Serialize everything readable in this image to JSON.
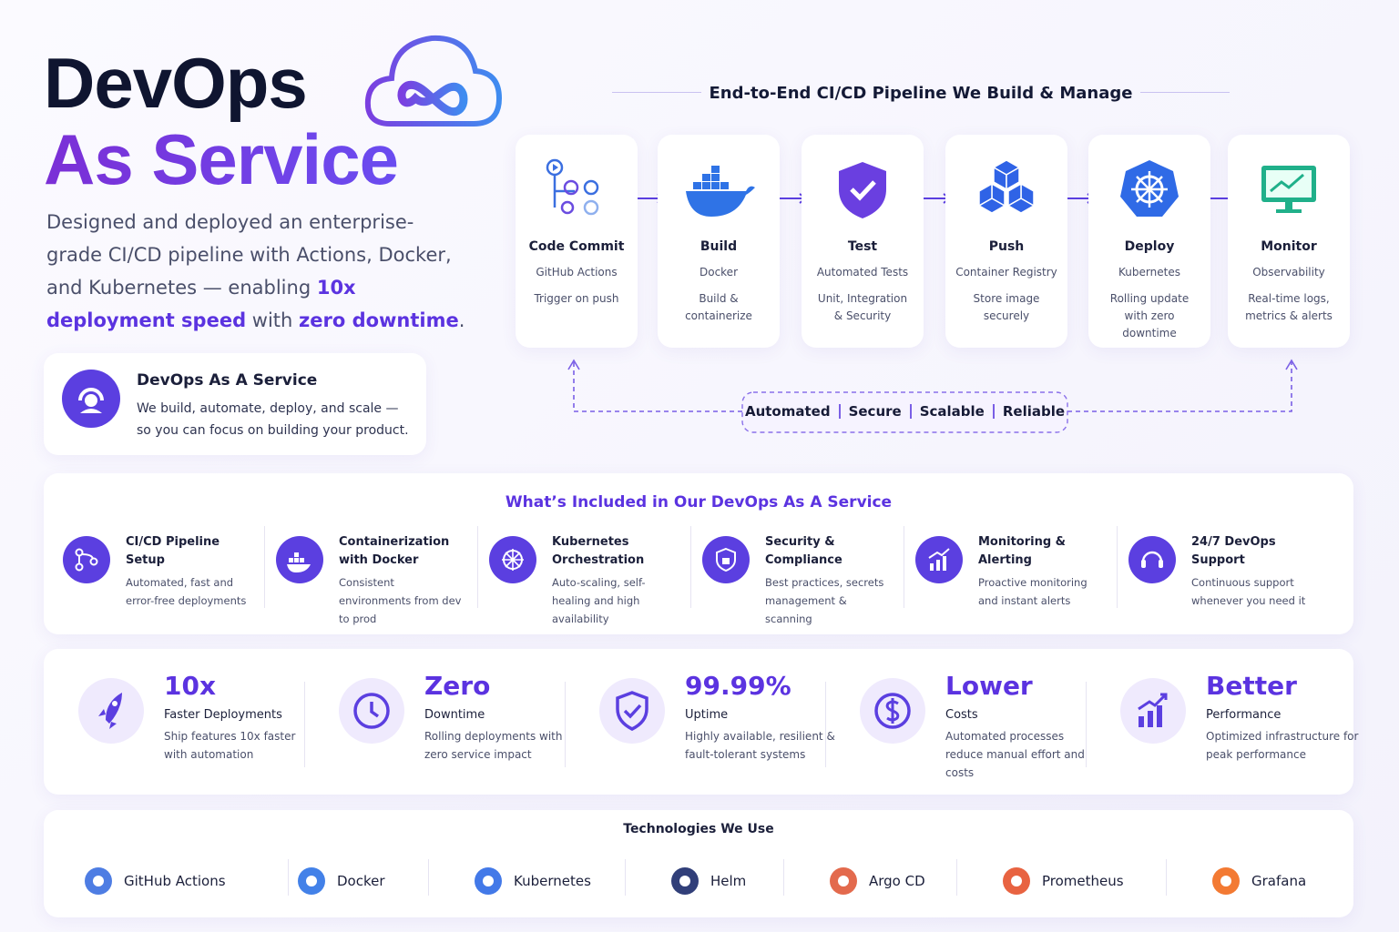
{
  "hero": {
    "title_line1": "DevOps",
    "title_line2": "As Service",
    "intro": [
      "Designed and deployed an enterprise-grade CI/CD pipeline with Actions, Docker, and Kubernetes — enabling ",
      "10x deployment speed",
      " with ",
      "zero downtime",
      "."
    ]
  },
  "service_card": {
    "title": "DevOps As A Service",
    "description": "We build, automate, deploy, and scale — so you can focus on building your product."
  },
  "pipeline": {
    "title": "End-to-End CI/CD Pipeline We Build & Manage",
    "stages": [
      {
        "name": "Code Commit",
        "tool": "GitHub Actions",
        "description": "Trigger on push"
      },
      {
        "name": "Build",
        "tool": "Docker",
        "description": "Build & containerize"
      },
      {
        "name": "Test",
        "tool": "Automated Tests",
        "description": "Unit, Integration & Security"
      },
      {
        "name": "Push",
        "tool": "Container Registry",
        "description": "Store image securely"
      },
      {
        "name": "Deploy",
        "tool": "Kubernetes",
        "description": "Rolling update with zero downtime"
      },
      {
        "name": "Monitor",
        "tool": "Observability",
        "description": "Real-time logs, metrics & alerts"
      }
    ],
    "tags": [
      "Automated",
      "Secure",
      "Scalable",
      "Reliable"
    ]
  },
  "included": {
    "title": "What’s Included in Our DevOps As A Service",
    "items": [
      {
        "title": "CI/CD Pipeline Setup",
        "description": "Automated, fast and error-free deployments"
      },
      {
        "title": "Containerization with Docker",
        "description": "Consistent environments from dev to prod"
      },
      {
        "title": "Kubernetes Orchestration",
        "description": "Auto-scaling, self-healing and high availability"
      },
      {
        "title": "Security & Compliance",
        "description": "Best practices, secrets management & scanning"
      },
      {
        "title": "Monitoring & Alerting",
        "description": "Proactive monitoring and instant alerts"
      },
      {
        "title": "24/7 DevOps Support",
        "description": "Continuous support whenever you need it"
      }
    ]
  },
  "stats": [
    {
      "value": "10x",
      "label": "Faster Deployments",
      "description": "Ship features 10x faster with automation"
    },
    {
      "value": "Zero",
      "label": "Downtime",
      "description": "Rolling deployments with zero service impact"
    },
    {
      "value": "99.99%",
      "label": "Uptime",
      "description": "Highly available, resilient & fault-tolerant systems"
    },
    {
      "value": "Lower",
      "label": "Costs",
      "description": "Automated processes reduce manual effort and costs"
    },
    {
      "value": "Better",
      "label": "Performance",
      "description": "Optimized infrastructure for peak performance"
    }
  ],
  "technologies": {
    "title": "Technologies We Use",
    "items": [
      "GitHub Actions",
      "Docker",
      "Kubernetes",
      "Helm",
      "Argo CD",
      "Prometheus",
      "Grafana"
    ]
  }
}
